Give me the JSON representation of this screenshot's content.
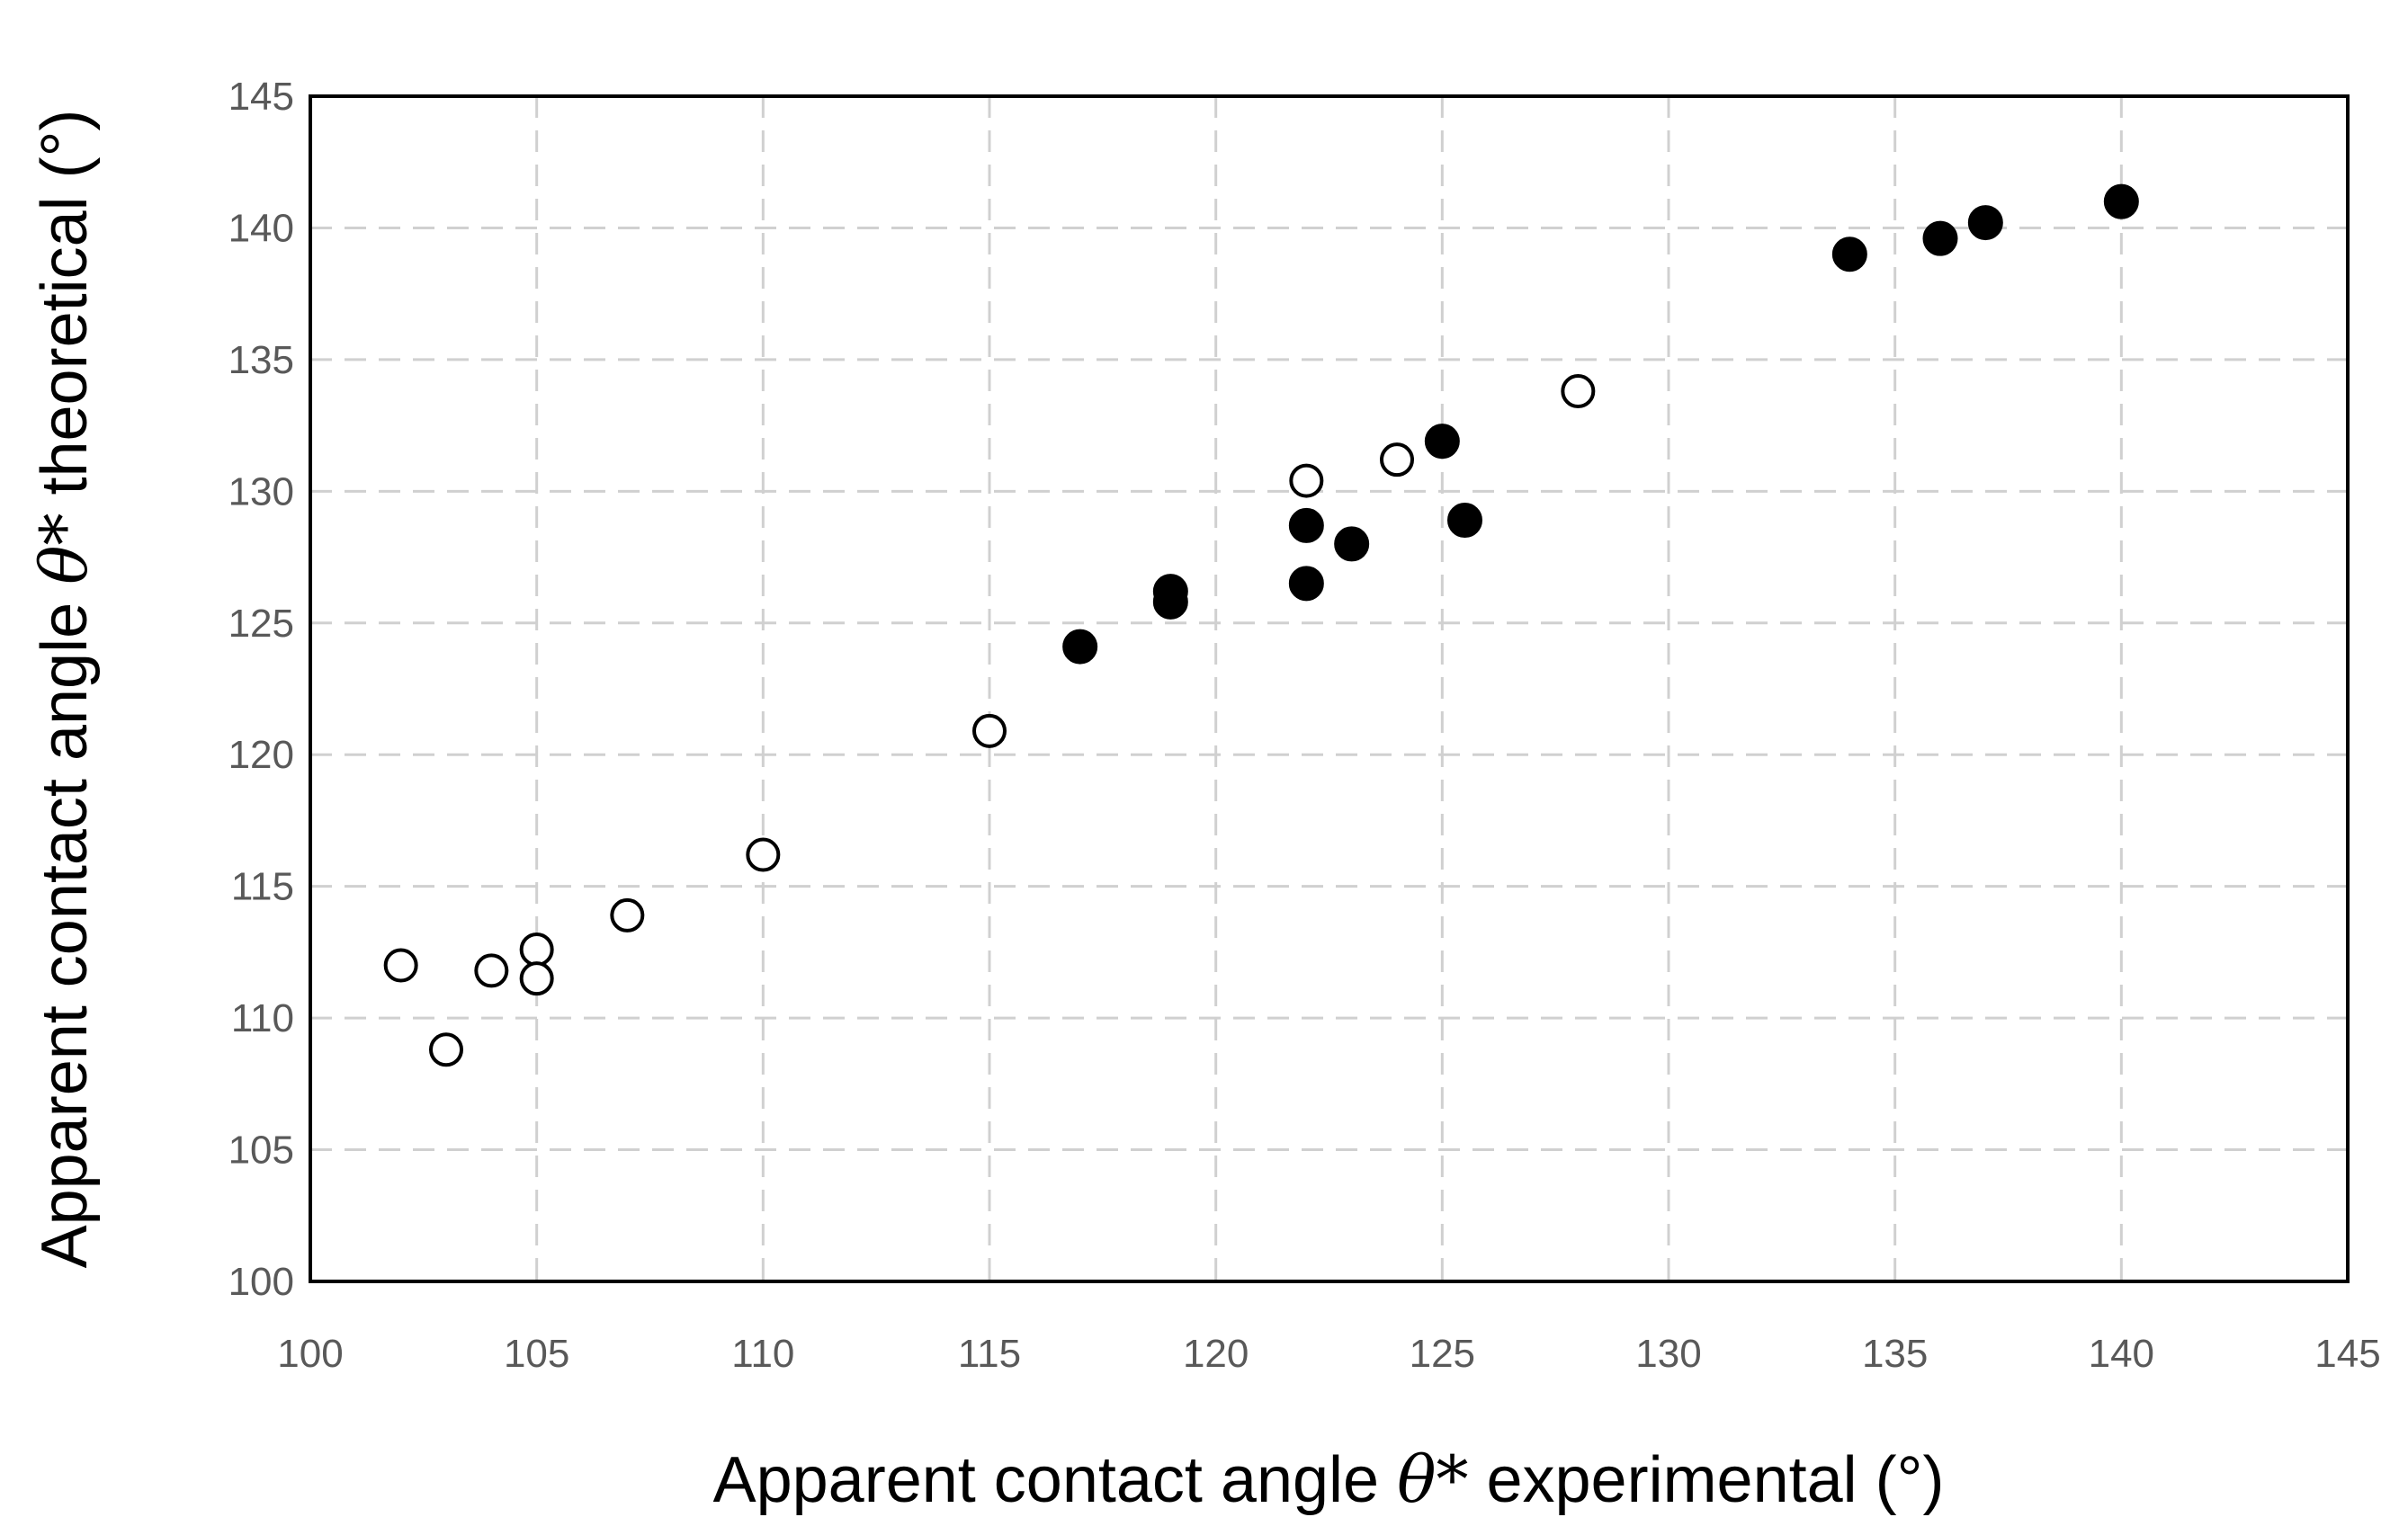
{
  "chart_data": {
    "type": "scatter",
    "xlabel": {
      "before": "Apparent contact angle ",
      "symbol": "θ*",
      "after": " experimental (°)"
    },
    "ylabel": {
      "before": "Apparent contact angle ",
      "symbol": "θ*",
      "after": " theoretical (°)"
    },
    "xlim": [
      100,
      145
    ],
    "ylim": [
      100,
      145
    ],
    "xticks": [
      "100",
      "105",
      "110",
      "115",
      "120",
      "125",
      "130",
      "135",
      "140",
      "145"
    ],
    "yticks": [
      "100",
      "105",
      "110",
      "115",
      "120",
      "125",
      "130",
      "135",
      "140",
      "145"
    ],
    "grid": true,
    "series": [
      {
        "marker": "open-circle",
        "color": "#000000",
        "points": [
          {
            "x": 102,
            "y": 112.0
          },
          {
            "x": 103,
            "y": 108.8
          },
          {
            "x": 104,
            "y": 111.8
          },
          {
            "x": 105,
            "y": 112.6
          },
          {
            "x": 105,
            "y": 111.5
          },
          {
            "x": 107,
            "y": 113.9
          },
          {
            "x": 110,
            "y": 116.2
          },
          {
            "x": 115,
            "y": 120.9
          },
          {
            "x": 122,
            "y": 130.4
          },
          {
            "x": 124,
            "y": 131.2
          },
          {
            "x": 128,
            "y": 133.8
          }
        ]
      },
      {
        "marker": "filled-circle",
        "color": "#000000",
        "points": [
          {
            "x": 117,
            "y": 124.1
          },
          {
            "x": 119,
            "y": 126.2
          },
          {
            "x": 119,
            "y": 125.8
          },
          {
            "x": 122,
            "y": 128.7
          },
          {
            "x": 122,
            "y": 126.5
          },
          {
            "x": 123,
            "y": 128.0
          },
          {
            "x": 125,
            "y": 131.9
          },
          {
            "x": 125.5,
            "y": 128.9
          },
          {
            "x": 134,
            "y": 139.0
          },
          {
            "x": 136,
            "y": 139.6
          },
          {
            "x": 137,
            "y": 140.2
          },
          {
            "x": 140,
            "y": 141.0
          }
        ]
      }
    ]
  }
}
